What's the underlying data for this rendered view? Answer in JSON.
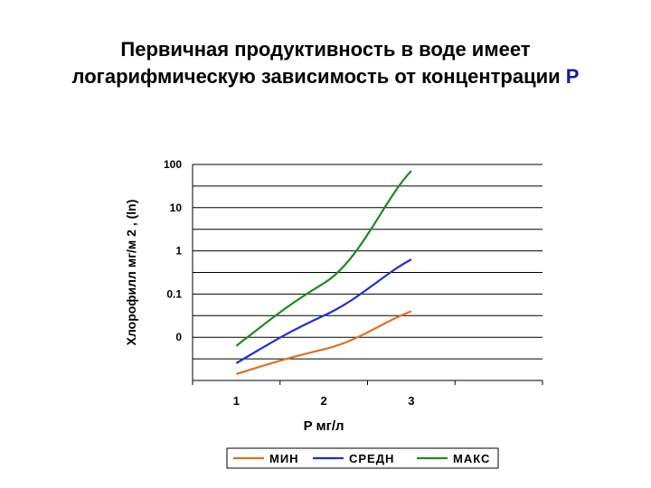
{
  "page": {
    "title_line1": "Первичная продуктивность в воде имеет",
    "title_line2_text": "логарифмическую зависимость от концентрации ",
    "title_line2_accent": "P"
  },
  "colors": {
    "min": "#e07020",
    "sred": "#1f2fd0",
    "maks": "#1e8a1e",
    "grid": "#000000",
    "title_accent": "#1a1aa0"
  },
  "chart_data": {
    "type": "line",
    "title": "Первичная продуктивность в воде имеет логарифмическую зависимость от концентрации P",
    "xlabel": "P мг/л",
    "ylabel": "Хлорофилл мг/м 2 , (ln)",
    "x_ticks": [
      "1",
      "2",
      "3"
    ],
    "xlim": [
      0.5,
      4.5
    ],
    "y_ticks": [
      "100",
      "10",
      "1",
      "0.1",
      "0"
    ],
    "y_scale": "log-like categorical levels",
    "ylim_levels": [
      0,
      5
    ],
    "grid": "horizontal",
    "legend_position": "bottom",
    "series": [
      {
        "name": "МИН",
        "color_key": "min",
        "x": [
          1,
          2,
          3
        ],
        "y_levels": [
          0.15,
          0.72,
          1.6
        ]
      },
      {
        "name": "СРЕДН",
        "color_key": "sred",
        "x": [
          1,
          2,
          3
        ],
        "y_levels": [
          0.4,
          1.5,
          2.8
        ]
      },
      {
        "name": "МАКС",
        "color_key": "maks",
        "x": [
          1,
          2,
          3
        ],
        "y_levels": [
          0.8,
          2.25,
          4.85
        ]
      }
    ]
  }
}
